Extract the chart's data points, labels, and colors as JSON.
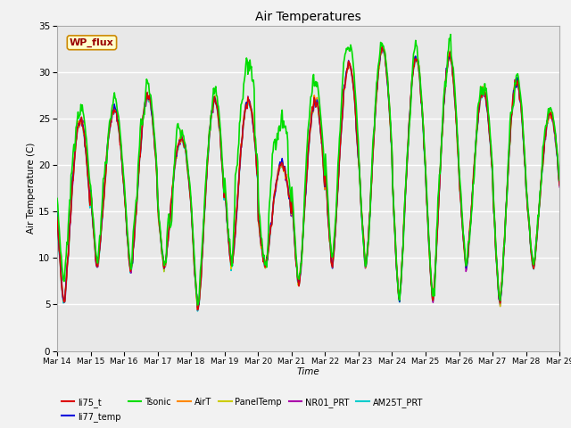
{
  "title": "Air Temperatures",
  "xlabel": "Time",
  "ylabel": "Air Temperature (C)",
  "ylim": [
    0,
    35
  ],
  "xlim": [
    0,
    360
  ],
  "fig_bg_color": "#f2f2f2",
  "plot_bg_color": "#e8e8e8",
  "grid_color": "#ffffff",
  "annotation_text": "WP_flux",
  "annotation_bg": "#ffffcc",
  "annotation_border": "#cc8800",
  "annotation_text_color": "#990000",
  "x_tick_labels": [
    "Mar 14",
    "Mar 15",
    "Mar 16",
    "Mar 17",
    "Mar 18",
    "Mar 19",
    "Mar 20",
    "Mar 21",
    "Mar 22",
    "Mar 23",
    "Mar 24",
    "Mar 25",
    "Mar 26",
    "Mar 27",
    "Mar 28",
    "Mar 29"
  ],
  "x_tick_positions": [
    0,
    24,
    48,
    72,
    96,
    120,
    144,
    168,
    192,
    216,
    240,
    264,
    288,
    312,
    336,
    360
  ],
  "y_ticks": [
    0,
    5,
    10,
    15,
    20,
    25,
    30,
    35
  ],
  "series": {
    "li75_t": {
      "color": "#dd0000",
      "lw": 1.0,
      "zorder": 5
    },
    "li77_temp": {
      "color": "#0000dd",
      "lw": 1.0,
      "zorder": 5
    },
    "Tsonic": {
      "color": "#00dd00",
      "lw": 1.2,
      "zorder": 6
    },
    "AirT": {
      "color": "#ff8800",
      "lw": 1.2,
      "zorder": 5
    },
    "PanelTemp": {
      "color": "#cccc00",
      "lw": 1.0,
      "zorder": 4
    },
    "NR01_PRT": {
      "color": "#aa00aa",
      "lw": 1.0,
      "zorder": 4
    },
    "AM25T_PRT": {
      "color": "#00cccc",
      "lw": 1.2,
      "zorder": 3
    }
  },
  "legend_order": [
    "li75_t",
    "li77_temp",
    "Tsonic",
    "AirT",
    "PanelTemp",
    "NR01_PRT",
    "AM25T_PRT"
  ]
}
